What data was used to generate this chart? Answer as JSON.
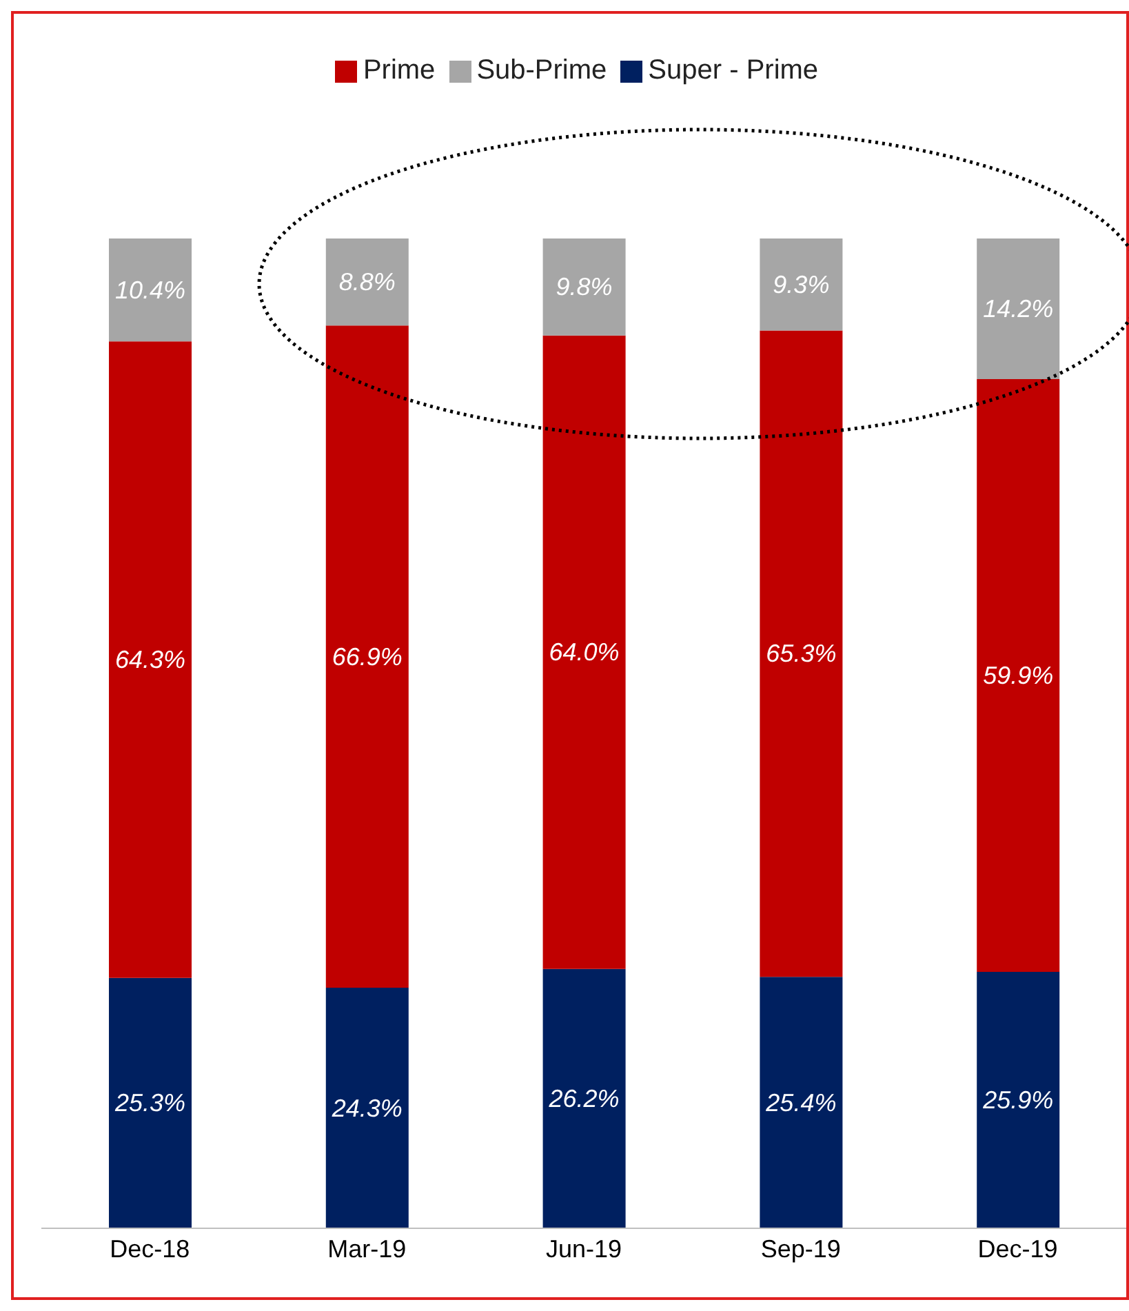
{
  "chart_data": {
    "type": "bar",
    "stacked": true,
    "legend": "top",
    "categories": [
      "Dec-18",
      "Mar-19",
      "Jun-19",
      "Sep-19",
      "Dec-19"
    ],
    "series": [
      {
        "name": "Super - Prime",
        "color": "#002060",
        "values": [
          25.3,
          24.3,
          26.2,
          25.4,
          25.9
        ],
        "value_labels": [
          "25.3%",
          "24.3%",
          "26.2%",
          "25.4%",
          "25.9%"
        ]
      },
      {
        "name": "Prime",
        "color": "#c00000",
        "values": [
          64.3,
          66.9,
          64.0,
          65.3,
          59.9
        ],
        "value_labels": [
          "64.3%",
          "66.9%",
          "64.0%",
          "65.3%",
          "59.9%"
        ]
      },
      {
        "name": "Sub-Prime",
        "color": "#a6a6a6",
        "values": [
          10.4,
          8.8,
          9.8,
          9.3,
          14.2
        ],
        "value_labels": [
          "10.4%",
          "8.8%",
          "9.8%",
          "9.3%",
          "14.2%"
        ]
      }
    ]
  }
}
